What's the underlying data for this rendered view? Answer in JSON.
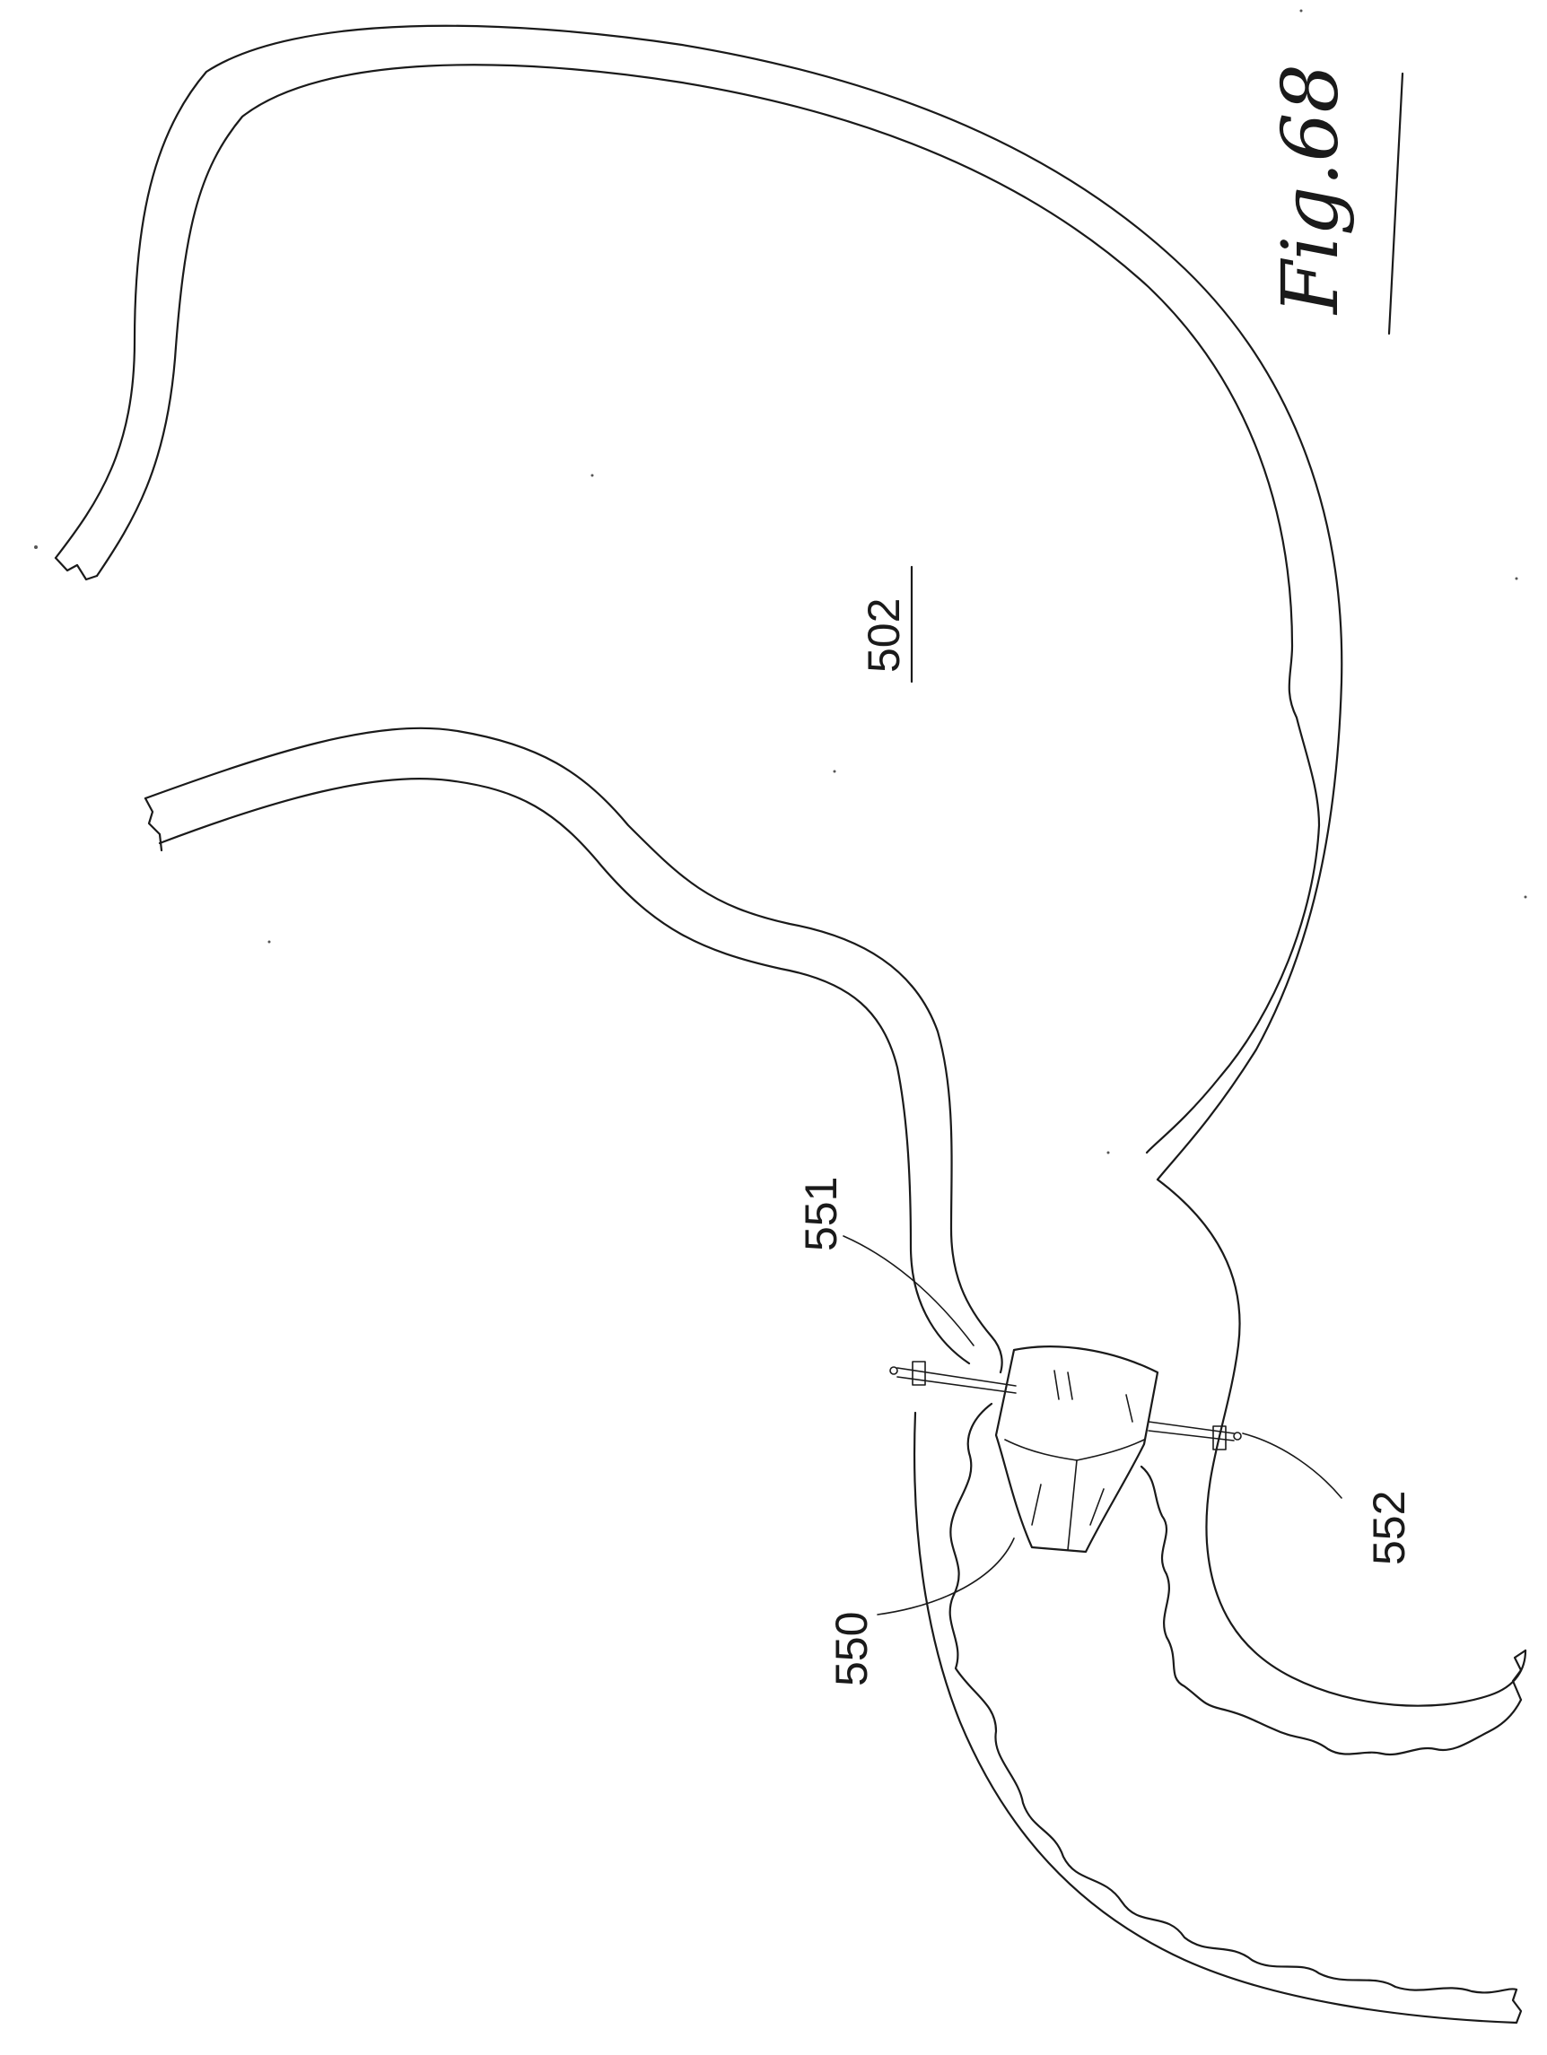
{
  "figure": {
    "label": "Fig.68"
  },
  "reference_numerals": {
    "stomach": "502",
    "device": "550",
    "anchor_upper": "551",
    "anchor_lower": "552"
  }
}
